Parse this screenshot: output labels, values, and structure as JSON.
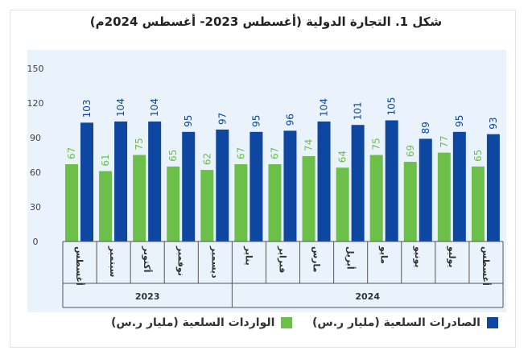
{
  "chart_data": {
    "type": "bar",
    "title": "شكل 1. التجارة الدولية (أغسطس 2023- أغسطس 2024م)",
    "categories": [
      "أغسطس",
      "سبتمبر",
      "أكتوبر",
      "نوفمبر",
      "ديسمبر",
      "يناير",
      "فبراير",
      "مارس",
      "أبريل",
      "مايو",
      "يونيو",
      "يوليو",
      "أغسطس"
    ],
    "year_groups": [
      {
        "label": "2023",
        "count": 5
      },
      {
        "label": "2024",
        "count": 8
      }
    ],
    "series": [
      {
        "name": "الواردات السلعية (مليار ر.س)",
        "color": "#6cc04a",
        "values": [
          67,
          61,
          75,
          65,
          62,
          67,
          67,
          74,
          64,
          75,
          69,
          77,
          65
        ]
      },
      {
        "name": "الصادرات السلعية (مليار ر.س)",
        "color": "#0d47a1",
        "values": [
          103,
          104,
          104,
          95,
          97,
          95,
          96,
          104,
          101,
          105,
          89,
          95,
          93
        ]
      }
    ],
    "ylim": [
      0,
      150
    ],
    "yticks": [
      0,
      30,
      60,
      90,
      120,
      150
    ],
    "grid": false,
    "legend_position": "bottom"
  }
}
